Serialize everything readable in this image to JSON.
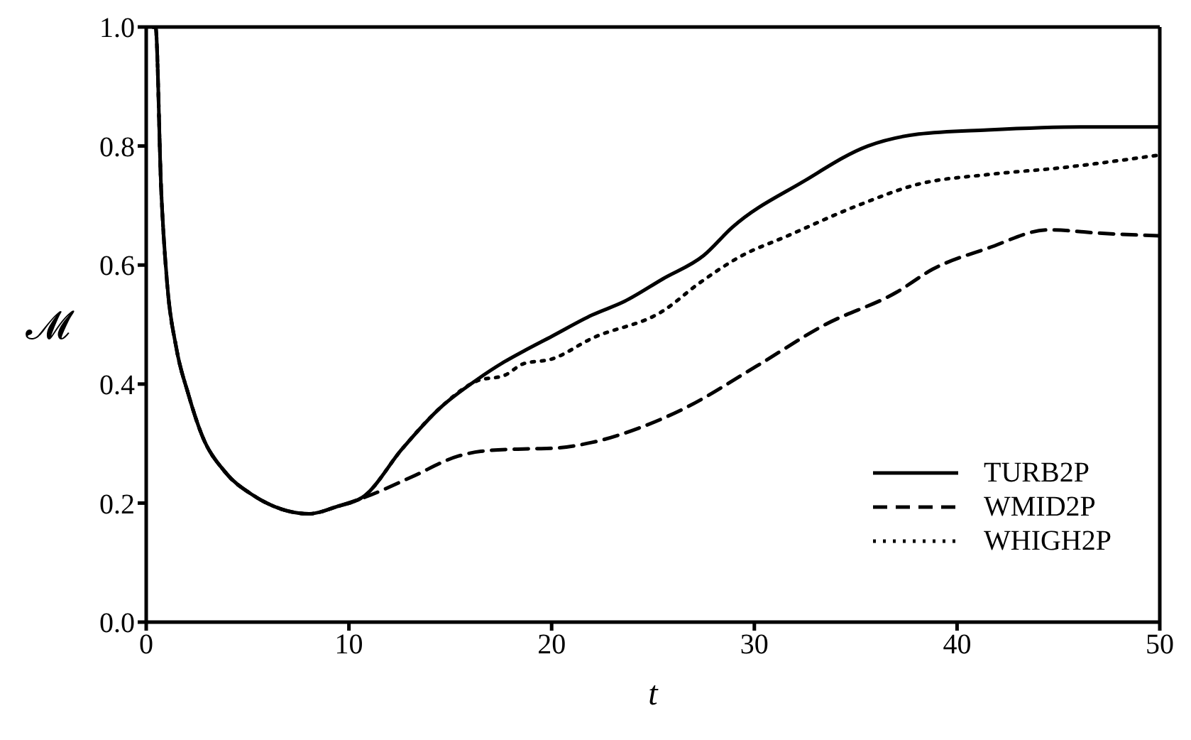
{
  "chart_data": {
    "type": "line",
    "xlabel": "t",
    "ylabel": "𝓜",
    "xlim": [
      0,
      50
    ],
    "ylim": [
      0,
      1
    ],
    "xticks": [
      0,
      10,
      20,
      30,
      40,
      50
    ],
    "yticks": [
      {
        "value": 0,
        "label": "0.0"
      },
      {
        "value": 0.2,
        "label": "0.2"
      },
      {
        "value": 0.4,
        "label": "0.4"
      },
      {
        "value": 0.6,
        "label": "0.6"
      },
      {
        "value": 0.8,
        "label": "0.8"
      },
      {
        "value": 1,
        "label": "1.0"
      }
    ],
    "legend": "bottom right",
    "marker": "none",
    "series": [
      {
        "name": "TURB2P",
        "color": "#000000",
        "line_style": "solid",
        "x": [
          0.34,
          0.46,
          0.74,
          1.03,
          1.49,
          2.07,
          2.75,
          3.9,
          5.28,
          6.66,
          8.03,
          9.4,
          10.8,
          12.6,
          14.5,
          16.3,
          17.7,
          18.6,
          20,
          22,
          23.6,
          25.5,
          27.5,
          28.9,
          32.4,
          35.6,
          38.1,
          41.5,
          46.1,
          50
        ],
        "values": [
          1.0,
          1.0,
          0.725,
          0.57,
          0.46,
          0.384,
          0.314,
          0.252,
          0.213,
          0.19,
          0.182,
          0.194,
          0.213,
          0.29,
          0.36,
          0.407,
          0.438,
          0.455,
          0.48,
          0.516,
          0.539,
          0.577,
          0.616,
          0.663,
          0.74,
          0.8,
          0.82,
          0.827,
          0.832,
          0.832
        ]
      },
      {
        "name": "WMID2P",
        "color": "#000000",
        "line_style": "dashed",
        "x": [
          0.34,
          0.46,
          0.74,
          1.03,
          1.49,
          2.07,
          2.75,
          3.9,
          5.28,
          6.66,
          8.03,
          9.4,
          10.8,
          13.1,
          15.4,
          16.5,
          18.6,
          20,
          22,
          24.3,
          26.6,
          30.1,
          33.5,
          37,
          38.8,
          41.5,
          44.5,
          47.3,
          50
        ],
        "values": [
          1.0,
          1.0,
          0.725,
          0.57,
          0.46,
          0.384,
          0.314,
          0.252,
          0.213,
          0.19,
          0.182,
          0.194,
          0.21,
          0.244,
          0.279,
          0.287,
          0.291,
          0.292,
          0.302,
          0.326,
          0.36,
          0.43,
          0.5,
          0.554,
          0.593,
          0.628,
          0.659,
          0.653,
          0.649
        ]
      },
      {
        "name": "WHIGH2P",
        "color": "#000000",
        "line_style": "dotted",
        "x": [
          0.34,
          0.46,
          0.74,
          1.03,
          1.49,
          2.07,
          2.75,
          3.9,
          5.28,
          6.66,
          8.03,
          9.4,
          10.8,
          12.6,
          14.5,
          16.3,
          17.7,
          18.6,
          20,
          22,
          25.5,
          27.3,
          29.4,
          31.5,
          35.1,
          38.1,
          41.5,
          45,
          50
        ],
        "values": [
          1.0,
          1.0,
          0.725,
          0.57,
          0.46,
          0.384,
          0.314,
          0.252,
          0.213,
          0.19,
          0.182,
          0.194,
          0.213,
          0.29,
          0.36,
          0.405,
          0.415,
          0.434,
          0.442,
          0.477,
          0.523,
          0.57,
          0.616,
          0.647,
          0.7,
          0.736,
          0.752,
          0.763,
          0.785
        ]
      }
    ]
  }
}
